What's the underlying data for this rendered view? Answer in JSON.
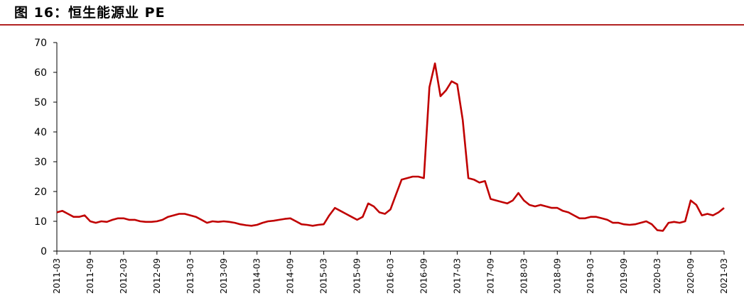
{
  "figure": {
    "title": "图 16：恒生能源业 PE",
    "accent_color": "#b22222"
  },
  "chart_data": {
    "type": "line",
    "title": "",
    "xlabel": "",
    "ylabel": "",
    "ylim": [
      0,
      70
    ],
    "yticks": [
      "0",
      "10",
      "20",
      "30",
      "40",
      "50",
      "60",
      "70"
    ],
    "xticks": [
      "2011-03",
      "2011-09",
      "2012-03",
      "2012-09",
      "2013-03",
      "2013-09",
      "2014-03",
      "2014-09",
      "2015-03",
      "2015-09",
      "2016-03",
      "2016-09",
      "2017-03",
      "2017-09",
      "2018-03",
      "2018-09",
      "2019-03",
      "2019-09",
      "2020-03",
      "2020-09",
      "2021-03"
    ],
    "grid": false,
    "legend": "none",
    "series": [
      {
        "color": "#c00000",
        "points": [
          [
            "2011-03",
            13.0
          ],
          [
            "2011-04",
            13.5
          ],
          [
            "2011-05",
            12.5
          ],
          [
            "2011-06",
            11.5
          ],
          [
            "2011-07",
            11.5
          ],
          [
            "2011-08",
            12.0
          ],
          [
            "2011-09",
            10.0
          ],
          [
            "2011-10",
            9.5
          ],
          [
            "2011-11",
            10.0
          ],
          [
            "2011-12",
            9.8
          ],
          [
            "2012-01",
            10.5
          ],
          [
            "2012-02",
            11.0
          ],
          [
            "2012-03",
            11.0
          ],
          [
            "2012-04",
            10.5
          ],
          [
            "2012-05",
            10.5
          ],
          [
            "2012-06",
            10.0
          ],
          [
            "2012-07",
            9.8
          ],
          [
            "2012-08",
            9.8
          ],
          [
            "2012-09",
            10.0
          ],
          [
            "2012-10",
            10.5
          ],
          [
            "2012-11",
            11.5
          ],
          [
            "2012-12",
            12.0
          ],
          [
            "2013-01",
            12.5
          ],
          [
            "2013-02",
            12.5
          ],
          [
            "2013-03",
            12.0
          ],
          [
            "2013-04",
            11.5
          ],
          [
            "2013-05",
            10.5
          ],
          [
            "2013-06",
            9.5
          ],
          [
            "2013-07",
            10.0
          ],
          [
            "2013-08",
            9.8
          ],
          [
            "2013-09",
            10.0
          ],
          [
            "2013-10",
            9.8
          ],
          [
            "2013-11",
            9.5
          ],
          [
            "2013-12",
            9.0
          ],
          [
            "2014-01",
            8.7
          ],
          [
            "2014-02",
            8.5
          ],
          [
            "2014-03",
            8.8
          ],
          [
            "2014-04",
            9.5
          ],
          [
            "2014-05",
            10.0
          ],
          [
            "2014-06",
            10.2
          ],
          [
            "2014-07",
            10.5
          ],
          [
            "2014-08",
            10.8
          ],
          [
            "2014-09",
            11.0
          ],
          [
            "2014-10",
            10.0
          ],
          [
            "2014-11",
            9.0
          ],
          [
            "2014-12",
            8.8
          ],
          [
            "2015-01",
            8.5
          ],
          [
            "2015-02",
            8.8
          ],
          [
            "2015-03",
            9.0
          ],
          [
            "2015-04",
            12.0
          ],
          [
            "2015-05",
            14.5
          ],
          [
            "2015-06",
            13.5
          ],
          [
            "2015-07",
            12.5
          ],
          [
            "2015-08",
            11.5
          ],
          [
            "2015-09",
            10.5
          ],
          [
            "2015-10",
            11.5
          ],
          [
            "2015-11",
            16.0
          ],
          [
            "2015-12",
            15.0
          ],
          [
            "2016-01",
            13.0
          ],
          [
            "2016-02",
            12.5
          ],
          [
            "2016-03",
            14.0
          ],
          [
            "2016-04",
            19.0
          ],
          [
            "2016-05",
            24.0
          ],
          [
            "2016-06",
            24.5
          ],
          [
            "2016-07",
            25.0
          ],
          [
            "2016-08",
            25.0
          ],
          [
            "2016-09",
            24.5
          ],
          [
            "2016-10",
            55.0
          ],
          [
            "2016-11",
            63.0
          ],
          [
            "2016-12",
            52.0
          ],
          [
            "2017-01",
            54.0
          ],
          [
            "2017-02",
            57.0
          ],
          [
            "2017-03",
            56.0
          ],
          [
            "2017-04",
            44.0
          ],
          [
            "2017-05",
            24.5
          ],
          [
            "2017-06",
            24.0
          ],
          [
            "2017-07",
            23.0
          ],
          [
            "2017-08",
            23.5
          ],
          [
            "2017-09",
            17.5
          ],
          [
            "2017-10",
            17.0
          ],
          [
            "2017-11",
            16.5
          ],
          [
            "2017-12",
            16.0
          ],
          [
            "2018-01",
            17.0
          ],
          [
            "2018-02",
            19.5
          ],
          [
            "2018-03",
            17.0
          ],
          [
            "2018-04",
            15.5
          ],
          [
            "2018-05",
            15.0
          ],
          [
            "2018-06",
            15.5
          ],
          [
            "2018-07",
            15.0
          ],
          [
            "2018-08",
            14.5
          ],
          [
            "2018-09",
            14.5
          ],
          [
            "2018-10",
            13.5
          ],
          [
            "2018-11",
            13.0
          ],
          [
            "2018-12",
            12.0
          ],
          [
            "2019-01",
            11.0
          ],
          [
            "2019-02",
            11.0
          ],
          [
            "2019-03",
            11.5
          ],
          [
            "2019-04",
            11.5
          ],
          [
            "2019-05",
            11.0
          ],
          [
            "2019-06",
            10.5
          ],
          [
            "2019-07",
            9.5
          ],
          [
            "2019-08",
            9.5
          ],
          [
            "2019-09",
            9.0
          ],
          [
            "2019-10",
            8.8
          ],
          [
            "2019-11",
            9.0
          ],
          [
            "2019-12",
            9.5
          ],
          [
            "2020-01",
            10.0
          ],
          [
            "2020-02",
            9.0
          ],
          [
            "2020-03",
            7.0
          ],
          [
            "2020-04",
            6.8
          ],
          [
            "2020-05",
            9.5
          ],
          [
            "2020-06",
            9.8
          ],
          [
            "2020-07",
            9.5
          ],
          [
            "2020-08",
            10.0
          ],
          [
            "2020-09",
            17.0
          ],
          [
            "2020-10",
            15.5
          ],
          [
            "2020-11",
            12.0
          ],
          [
            "2020-12",
            12.5
          ],
          [
            "2021-01",
            12.0
          ],
          [
            "2021-02",
            13.0
          ],
          [
            "2021-03",
            14.5
          ]
        ]
      }
    ]
  }
}
